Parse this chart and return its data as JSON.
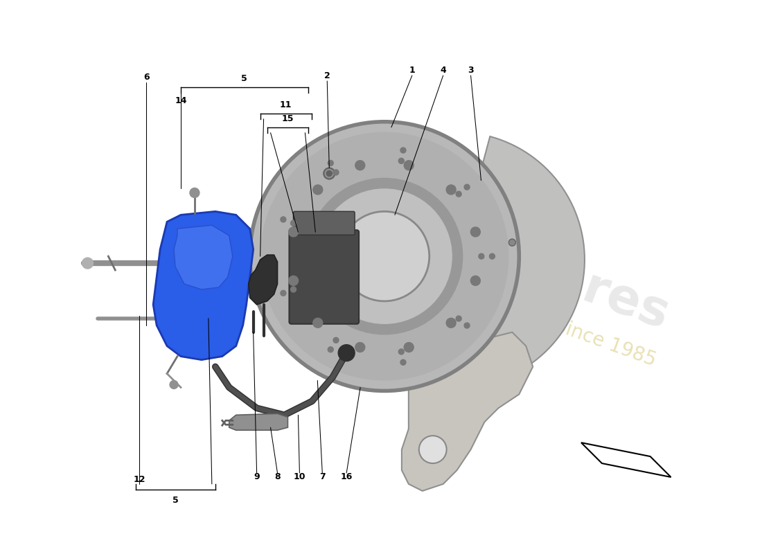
{
  "bg_color": "#ffffff",
  "fig_width": 11.0,
  "fig_height": 8.0,
  "caliper_color": "#2a5de8",
  "caliper_edge": "#1a3ab0",
  "disc_outer_color": "#b8b8b8",
  "disc_mid_color": "#c8c8c8",
  "disc_hub_color": "#a8a8a8",
  "disc_hole_color": "#d8d8d8",
  "shield_color": "#c0c0be",
  "shield_edge": "#909090",
  "knuckle_color": "#c8c5be",
  "pad_color": "#484848",
  "bracket_color": "#303030",
  "grey_parts_color": "#a0a0a0",
  "line_color": "#000000",
  "line_lw": 0.75,
  "label_fontsize": 9
}
